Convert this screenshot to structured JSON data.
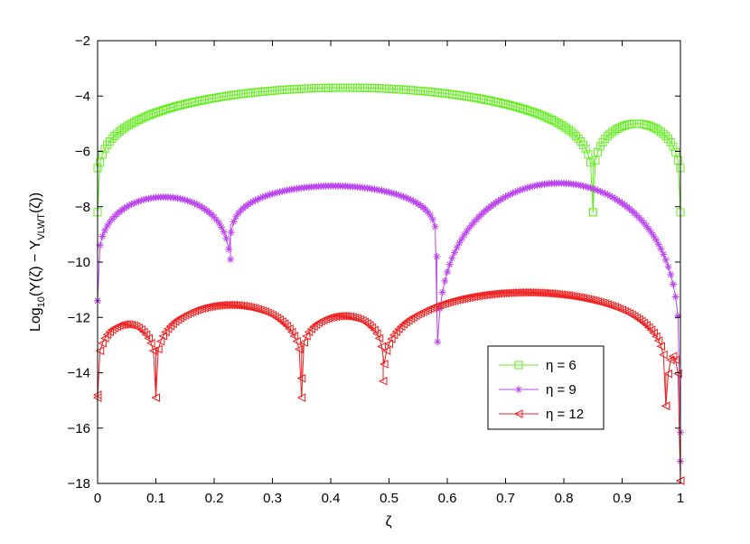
{
  "chart_data": {
    "type": "line",
    "title": "",
    "xlabel": "ζ",
    "ylabel_parts": {
      "prefix": "Log",
      "sub1": "10",
      "mid": "(Y(ζ) − Y",
      "sub2": "VLWT",
      "suffix": "(ζ))"
    },
    "xlim": [
      0,
      1
    ],
    "ylim": [
      -18,
      -2
    ],
    "xticks": [
      0,
      0.1,
      0.2,
      0.3,
      0.4,
      0.5,
      0.6,
      0.7,
      0.8,
      0.9,
      1
    ],
    "xtick_labels": [
      "0",
      "0.1",
      "0.2",
      "0.3",
      "0.4",
      "0.5",
      "0.6",
      "0.7",
      "0.8",
      "0.9",
      "1"
    ],
    "yticks": [
      -18,
      -16,
      -14,
      -12,
      -10,
      -8,
      -6,
      -4,
      -2
    ],
    "ytick_labels": [
      "−18",
      "−16",
      "−14",
      "−12",
      "−10",
      "−8",
      "−6",
      "−4",
      "−2"
    ],
    "grid": false,
    "legend_position": "lower-right",
    "series": [
      {
        "name": "η = 6",
        "color": "#66ee22",
        "marker": "square",
        "peaks": [
          [
            0.37,
            -3.7
          ],
          [
            0.92,
            -5.0
          ]
        ],
        "dips": [
          0,
          0.85,
          1
        ],
        "dip_values": [
          -6.6,
          -8.2,
          -6.6
        ]
      },
      {
        "name": "η = 9",
        "color": "#bb44ee",
        "marker": "asterisk",
        "peaks": [
          [
            0.125,
            -7.65
          ],
          [
            0.41,
            -7.25
          ],
          [
            0.79,
            -7.15
          ]
        ],
        "dips": [
          0,
          0.228,
          0.582,
          1
        ],
        "dip_values": [
          -11.4,
          -9.9,
          -9.8,
          -17.2
        ]
      },
      {
        "name": "η = 12",
        "color": "#ee2020",
        "marker": "triangle-left",
        "peaks": [
          [
            0.065,
            -12.25
          ],
          [
            0.225,
            -11.55
          ],
          [
            0.42,
            -11.95
          ],
          [
            0.71,
            -11.1
          ],
          [
            0.985,
            -13.4
          ]
        ],
        "dips": [
          0,
          0.1,
          0.35,
          0.49,
          0.975,
          1
        ],
        "dip_values": [
          -14.8,
          -14.9,
          -14.2,
          -14.3,
          -15.2,
          -17.9
        ]
      }
    ]
  },
  "legend": {
    "items": [
      "η = 6",
      "η = 9",
      "η = 12"
    ]
  }
}
